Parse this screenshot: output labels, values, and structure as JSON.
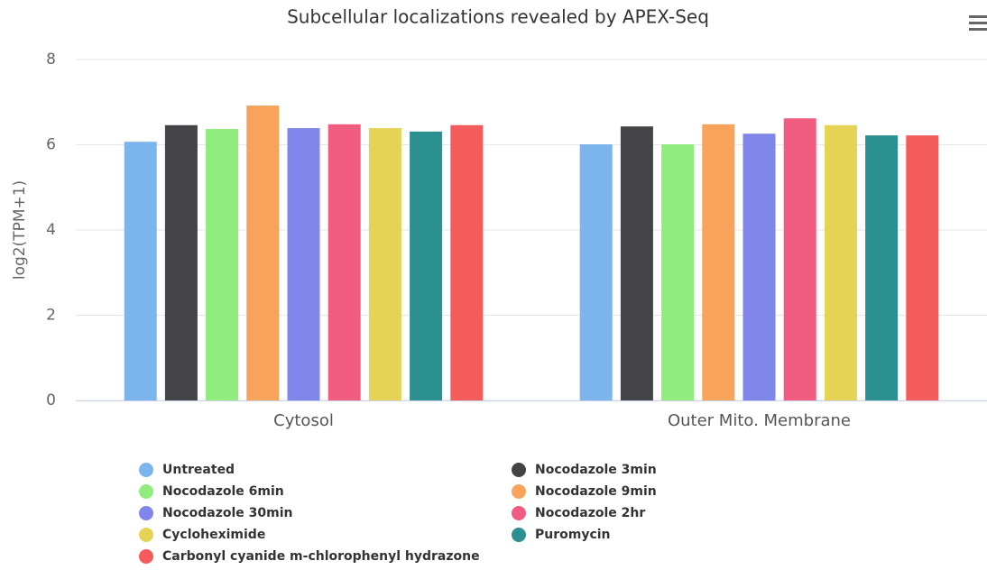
{
  "chart_data": {
    "type": "bar",
    "title": "Subcellular localizations revealed by APEX-Seq",
    "y_label": "log2(TPM+1)",
    "categories": [
      "Cytosol",
      "Outer Mito. Membrane"
    ],
    "ylim": [
      0,
      8
    ],
    "yticks": [
      0,
      2,
      4,
      6,
      8
    ],
    "grid": true,
    "series": [
      {
        "name": "Untreated",
        "color": "#7cb5ec",
        "values": [
          6.07,
          6.01
        ]
      },
      {
        "name": "Nocodazole 3min",
        "color": "#434348",
        "values": [
          6.46,
          6.43
        ]
      },
      {
        "name": "Nocodazole 6min",
        "color": "#90ed7d",
        "values": [
          6.37,
          6.01
        ]
      },
      {
        "name": "Nocodazole 9min",
        "color": "#f7a35c",
        "values": [
          6.92,
          6.48
        ]
      },
      {
        "name": "Nocodazole 30min",
        "color": "#8085e9",
        "values": [
          6.39,
          6.26
        ]
      },
      {
        "name": "Nocodazole 2hr",
        "color": "#f15c80",
        "values": [
          6.48,
          6.62
        ]
      },
      {
        "name": "Cycloheximide",
        "color": "#e4d354",
        "values": [
          6.39,
          6.46
        ]
      },
      {
        "name": "Puromycin",
        "color": "#2b908f",
        "values": [
          6.31,
          6.22
        ]
      },
      {
        "name": "Carbonyl cyanide m-chlorophenyl hydrazone",
        "color": "#f45b5b",
        "values": [
          6.46,
          6.22
        ]
      }
    ]
  }
}
